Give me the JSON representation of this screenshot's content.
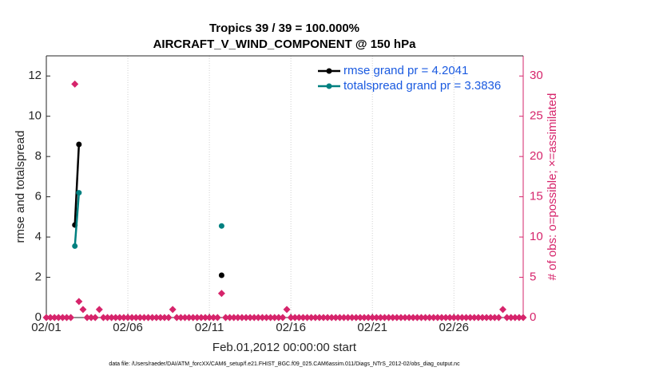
{
  "chart_data": {
    "type": "line",
    "title": [
      "Tropics 39 / 39 = 100.000%",
      "AIRCRAFT_V_WIND_COMPONENT @ 150 hPa"
    ],
    "xlabel": "Feb.01,2012 00:00:00 start",
    "ylabel": "rmse and totalspread",
    "y2label": "# of obs: o=possible; ×=assimilated",
    "footnote": "data file: /Users/raeder/DAI/ATM_forcXX/CAM6_setup/f.e21.FHIST_BGC.f09_025.CAM6assim.011/Diags_NTrS_2012-02/obs_diag_output.nc",
    "xlim": [
      1,
      30.25
    ],
    "xticks": [
      {
        "value": 1,
        "label": "02/01"
      },
      {
        "value": 6,
        "label": "02/06"
      },
      {
        "value": 11,
        "label": "02/11"
      },
      {
        "value": 16,
        "label": "02/16"
      },
      {
        "value": 21,
        "label": "02/21"
      },
      {
        "value": 26,
        "label": "02/26"
      }
    ],
    "ylim": [
      0,
      13
    ],
    "yticks": [
      0,
      2,
      4,
      6,
      8,
      10,
      12
    ],
    "y2lim": [
      0,
      32.5
    ],
    "y2ticks": [
      0,
      5,
      10,
      15,
      20,
      25,
      30
    ],
    "grid": "x",
    "legend": "upper right",
    "series": [
      {
        "name": "rmse grand pr = 4.2041",
        "color": "#000000",
        "x": [
          2.75,
          3,
          11.75
        ],
        "values": [
          4.6,
          8.6,
          2.1
        ]
      },
      {
        "name": "totalspread grand pr = 3.3836",
        "color": "#008080",
        "x": [
          2.75,
          3,
          11.75
        ],
        "values": [
          3.55,
          6.2,
          4.55
        ]
      },
      {
        "type": "scatter",
        "axis": "y2",
        "color": "#d6246b",
        "x": [
          1,
          1.25,
          1.5,
          1.75,
          2,
          2.25,
          2.5,
          2.75,
          3,
          3.25,
          3.5,
          3.75,
          4,
          4.25,
          4.5,
          4.75,
          5,
          5.25,
          5.5,
          5.75,
          6,
          6.25,
          6.5,
          6.75,
          7,
          7.25,
          7.5,
          7.75,
          8,
          8.25,
          8.5,
          8.75,
          9,
          9.25,
          9.5,
          9.75,
          10,
          10.25,
          10.5,
          10.75,
          11,
          11.25,
          11.5,
          11.75,
          12,
          12.25,
          12.5,
          12.75,
          13,
          13.25,
          13.5,
          13.75,
          14,
          14.25,
          14.5,
          14.75,
          15,
          15.25,
          15.5,
          15.75,
          16,
          16.25,
          16.5,
          16.75,
          17,
          17.25,
          17.5,
          17.75,
          18,
          18.25,
          18.5,
          18.75,
          19,
          19.25,
          19.5,
          19.75,
          20,
          20.25,
          20.5,
          20.75,
          21,
          21.25,
          21.5,
          21.75,
          22,
          22.25,
          22.5,
          22.75,
          23,
          23.25,
          23.5,
          23.75,
          24,
          24.25,
          24.5,
          24.75,
          25,
          25.25,
          25.5,
          25.75,
          26,
          26.25,
          26.5,
          26.75,
          27,
          27.25,
          27.5,
          27.75,
          28,
          28.25,
          28.5,
          28.75,
          29,
          29.25,
          29.5,
          29.75,
          30,
          30.25
        ],
        "values": [
          0,
          0,
          0,
          0,
          0,
          0,
          0,
          29,
          2,
          1,
          0,
          0,
          0,
          1,
          0,
          0,
          0,
          0,
          0,
          0,
          0,
          0,
          0,
          0,
          0,
          0,
          0,
          0,
          0,
          0,
          0,
          1,
          0,
          0,
          0,
          0,
          0,
          0,
          0,
          0,
          0,
          0,
          0,
          3,
          0,
          0,
          0,
          0,
          0,
          0,
          0,
          0,
          0,
          0,
          0,
          0,
          0,
          0,
          0,
          1,
          0,
          0,
          0,
          0,
          0,
          0,
          0,
          0,
          0,
          0,
          0,
          0,
          0,
          0,
          0,
          0,
          0,
          0,
          0,
          0,
          0,
          0,
          0,
          0,
          0,
          0,
          0,
          0,
          0,
          0,
          0,
          0,
          0,
          0,
          0,
          0,
          0,
          0,
          0,
          0,
          0,
          0,
          0,
          0,
          0,
          0,
          0,
          0,
          0,
          0,
          0,
          0,
          1,
          0,
          0,
          0,
          0,
          0
        ]
      }
    ]
  }
}
